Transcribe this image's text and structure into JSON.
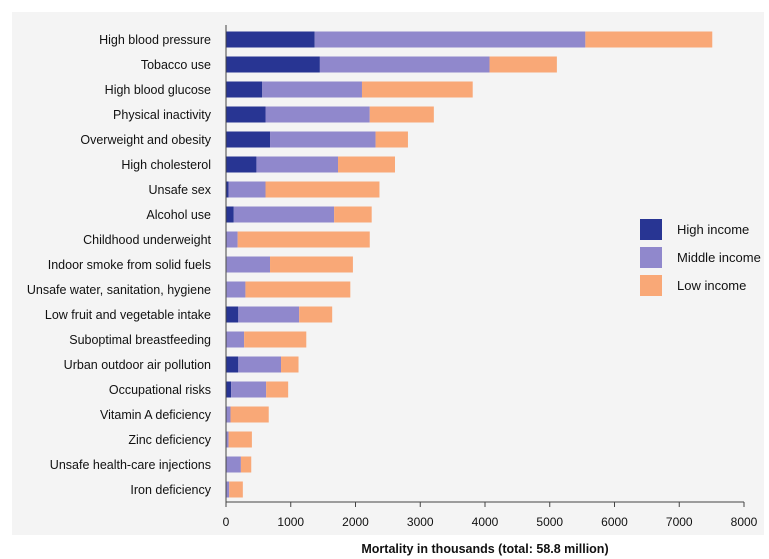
{
  "chart_data": {
    "type": "bar",
    "orientation": "horizontal",
    "stacked": true,
    "categories": [
      "High blood pressure",
      "Tobacco use",
      "High blood glucose",
      "Physical inactivity",
      "Overweight and obesity",
      "High cholesterol",
      "Unsafe sex",
      "Alcohol use",
      "Childhood underweight",
      "Indoor smoke from solid fuels",
      "Unsafe water, sanitation, hygiene",
      "Low fruit and vegetable intake",
      "Suboptimal breastfeeding",
      "Urban outdoor air pollution",
      "Occupational risks",
      "Vitamin A deficiency",
      "Zinc deficiency",
      "Unsafe health-care injections",
      "Iron deficiency"
    ],
    "series": [
      {
        "name": "High income",
        "color": "#283593",
        "values": [
          1370,
          1450,
          560,
          610,
          680,
          470,
          40,
          120,
          0,
          10,
          10,
          190,
          0,
          190,
          80,
          0,
          0,
          0,
          0
        ]
      },
      {
        "name": "Middle income",
        "color": "#9088cc",
        "values": [
          4180,
          2620,
          1540,
          1610,
          1630,
          1260,
          570,
          1550,
          180,
          670,
          290,
          940,
          280,
          660,
          540,
          70,
          40,
          230,
          50
        ]
      },
      {
        "name": "Low income",
        "color": "#f9a877",
        "values": [
          1960,
          1040,
          1710,
          990,
          500,
          880,
          1760,
          580,
          2040,
          1280,
          1620,
          510,
          960,
          270,
          340,
          590,
          360,
          160,
          210
        ]
      }
    ],
    "xlabel": "Mortality in thousands (total: 58.8 million)",
    "xlim": [
      0,
      8000
    ],
    "xticks": [
      0,
      1000,
      2000,
      3000,
      4000,
      5000,
      6000,
      7000,
      8000
    ],
    "grid": false,
    "legend_position": "right"
  }
}
